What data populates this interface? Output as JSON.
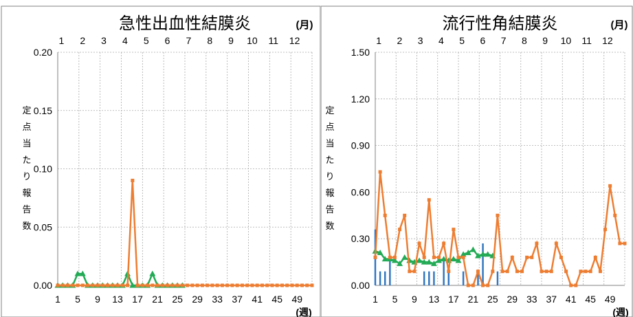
{
  "chart_data": [
    {
      "type": "line",
      "title": "急性出血性結膜炎",
      "month_unit": "(月)",
      "week_unit": "(週)",
      "ylabel_chars": [
        "定",
        "点",
        "当",
        "た",
        "り",
        "報",
        "告",
        "数"
      ],
      "months": [
        "1",
        "2",
        "3",
        "4",
        "5",
        "6",
        "7",
        "8",
        "9",
        "10",
        "11",
        "12"
      ],
      "ylim": [
        0,
        0.2
      ],
      "yticks": [
        "0.00",
        "0.05",
        "0.10",
        "0.15",
        "0.20"
      ],
      "xlim": [
        1,
        52
      ],
      "xticks": [
        "1",
        "5",
        "9",
        "13",
        "17",
        "21",
        "25",
        "29",
        "33",
        "37",
        "41",
        "45",
        "49"
      ],
      "legend": "none",
      "series": [
        {
          "style": "line-triangle",
          "color": "#22aa55",
          "x": [
            1,
            2,
            3,
            4,
            5,
            6,
            7,
            8,
            9,
            10,
            11,
            12,
            13,
            14,
            15,
            16,
            17,
            18,
            19,
            20,
            21,
            22,
            23,
            24,
            25,
            26
          ],
          "values": [
            0,
            0,
            0,
            0,
            0.01,
            0.01,
            0,
            0,
            0,
            0,
            0,
            0,
            0,
            0,
            0.01,
            0,
            0,
            0,
            0,
            0.01,
            0,
            0,
            0,
            0,
            0,
            0
          ]
        },
        {
          "style": "line-square",
          "color": "#ed7d31",
          "x": [
            1,
            2,
            3,
            4,
            5,
            6,
            7,
            8,
            9,
            10,
            11,
            12,
            13,
            14,
            15,
            16,
            17,
            18,
            19,
            20,
            21,
            22,
            23,
            24,
            25,
            26,
            27,
            28,
            29,
            30,
            31,
            32,
            33,
            34,
            35,
            36,
            37,
            38,
            39,
            40,
            41,
            42,
            43,
            44,
            45,
            46,
            47,
            48,
            49,
            50,
            51,
            52
          ],
          "values": [
            0,
            0,
            0,
            0,
            0,
            0,
            0,
            0,
            0,
            0,
            0,
            0,
            0,
            0,
            0,
            0.09,
            0,
            0,
            0,
            0,
            0,
            0,
            0,
            0,
            0,
            0,
            0,
            0,
            0,
            0,
            0,
            0,
            0,
            0,
            0,
            0,
            0,
            0,
            0,
            0,
            0,
            0,
            0,
            0,
            0,
            0,
            0,
            0,
            0,
            0,
            0,
            0
          ]
        }
      ]
    },
    {
      "type": "line",
      "title": "流行性角結膜炎",
      "month_unit": "(月)",
      "week_unit": "(週)",
      "ylabel_chars": [
        "定",
        "点",
        "当",
        "た",
        "り",
        "報",
        "告",
        "数"
      ],
      "months": [
        "1",
        "2",
        "3",
        "4",
        "5",
        "6",
        "7",
        "8",
        "9",
        "10",
        "11",
        "12"
      ],
      "ylim": [
        0,
        1.5
      ],
      "yticks": [
        "0.00",
        "0.30",
        "0.60",
        "0.90",
        "1.20",
        "1.50"
      ],
      "xlim": [
        1,
        52
      ],
      "xticks": [
        "1",
        "5",
        "9",
        "13",
        "17",
        "21",
        "25",
        "29",
        "33",
        "37",
        "41",
        "45",
        "49"
      ],
      "legend": "none",
      "series": [
        {
          "style": "bar",
          "color": "#2e75c0",
          "x": [
            1,
            2,
            3,
            4,
            5,
            6,
            7,
            8,
            9,
            10,
            11,
            12,
            13,
            14,
            15,
            16,
            17,
            18,
            19,
            20,
            21,
            22,
            23,
            24,
            25,
            26
          ],
          "values": [
            0.36,
            0.09,
            0.09,
            0.18,
            0,
            0,
            0,
            0,
            0,
            0,
            0.09,
            0.09,
            0.09,
            0,
            0.18,
            0.09,
            0,
            0,
            0.09,
            0,
            0,
            0.09,
            0.27,
            0,
            0,
            0.09
          ]
        },
        {
          "style": "line-triangle",
          "color": "#22aa55",
          "x": [
            1,
            2,
            3,
            4,
            5,
            6,
            7,
            8,
            9,
            10,
            11,
            12,
            13,
            14,
            15,
            16,
            17,
            18,
            19,
            20,
            21,
            22,
            23,
            24,
            25
          ],
          "values": [
            0.22,
            0.21,
            0.17,
            0.17,
            0.16,
            0.14,
            0.18,
            0.16,
            0.15,
            0.16,
            0.15,
            0.15,
            0.14,
            0.16,
            0.17,
            0.16,
            0.17,
            0.16,
            0.2,
            0.21,
            0.23,
            0.19,
            0.2,
            0.2,
            0.19
          ]
        },
        {
          "style": "line-square",
          "color": "#ed7d31",
          "x": [
            1,
            2,
            3,
            4,
            5,
            6,
            7,
            8,
            9,
            10,
            11,
            12,
            13,
            14,
            15,
            16,
            17,
            18,
            19,
            20,
            21,
            22,
            23,
            24,
            25,
            26,
            27,
            28,
            29,
            30,
            31,
            32,
            33,
            34,
            35,
            36,
            37,
            38,
            39,
            40,
            41,
            42,
            43,
            44,
            45,
            46,
            47,
            48,
            49,
            50,
            51,
            52
          ],
          "values": [
            0.18,
            0.73,
            0.45,
            0.18,
            0.18,
            0.36,
            0.45,
            0.09,
            0.09,
            0.27,
            0.18,
            0.55,
            0.18,
            0.18,
            0.27,
            0.09,
            0.36,
            0.18,
            0.18,
            0,
            0,
            0.09,
            0,
            0,
            0.09,
            0.45,
            0.09,
            0.09,
            0.18,
            0.09,
            0.09,
            0.18,
            0.18,
            0.27,
            0.09,
            0.09,
            0.09,
            0.27,
            0.18,
            0.09,
            0,
            0,
            0.09,
            0.09,
            0.09,
            0.18,
            0.09,
            0.36,
            0.64,
            0.45,
            0.27,
            0.27
          ]
        }
      ]
    }
  ]
}
